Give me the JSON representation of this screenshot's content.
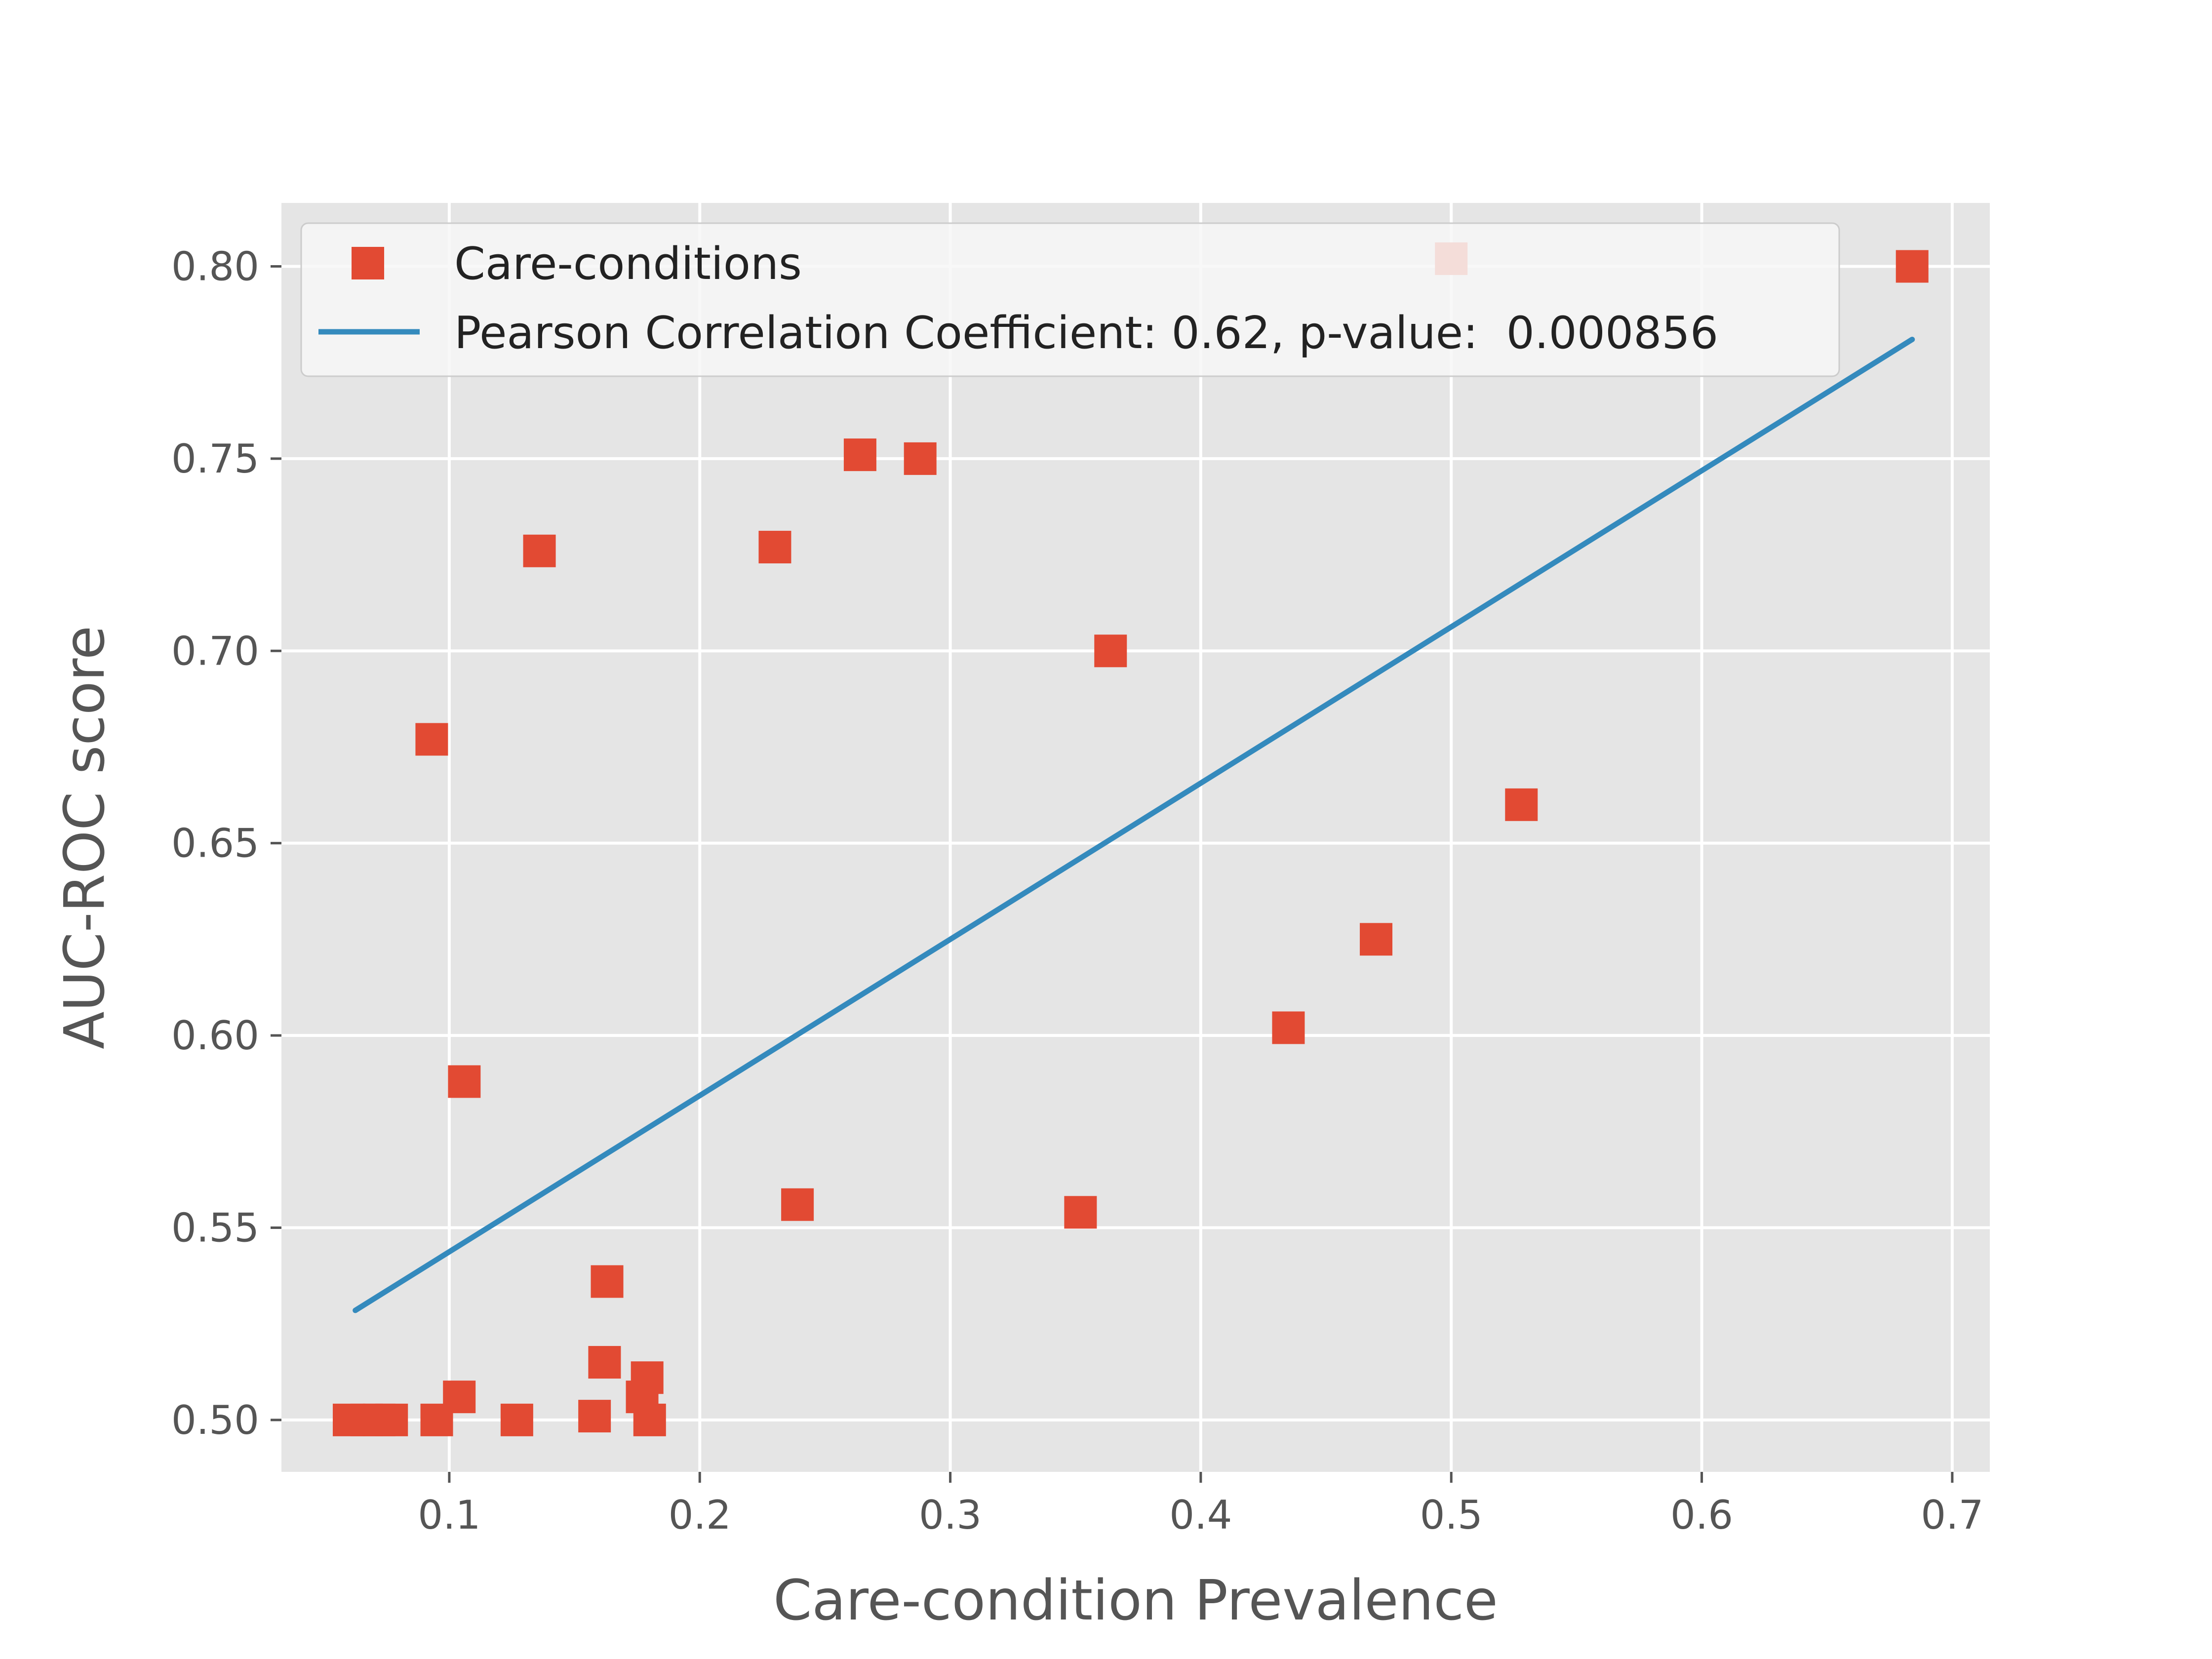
{
  "chart_data": {
    "type": "scatter",
    "xlabel": "Care-condition Prevalence",
    "ylabel": "AUC-ROC score",
    "xlim": [
      0.033,
      0.715
    ],
    "ylim": [
      0.4865,
      0.8165
    ],
    "xticks": [
      0.1,
      0.2,
      0.3,
      0.4,
      0.5,
      0.6,
      0.7
    ],
    "xtick_labels": [
      "0.1",
      "0.2",
      "0.3",
      "0.4",
      "0.5",
      "0.6",
      "0.7"
    ],
    "yticks": [
      0.5,
      0.55,
      0.6,
      0.65,
      0.7,
      0.75,
      0.8
    ],
    "ytick_labels": [
      "0.50",
      "0.55",
      "0.60",
      "0.65",
      "0.70",
      "0.75",
      "0.80"
    ],
    "grid": true,
    "legend_position": "top-left",
    "colors": {
      "background": "#e5e5e5",
      "grid": "#ffffff",
      "points": "#e24a33",
      "line": "#348abd"
    },
    "series": [
      {
        "name": "Care-conditions",
        "kind": "scatter",
        "marker": "square",
        "points": [
          {
            "x": 0.06,
            "y": 0.5
          },
          {
            "x": 0.067,
            "y": 0.5
          },
          {
            "x": 0.072,
            "y": 0.5
          },
          {
            "x": 0.077,
            "y": 0.5
          },
          {
            "x": 0.093,
            "y": 0.677
          },
          {
            "x": 0.095,
            "y": 0.5
          },
          {
            "x": 0.104,
            "y": 0.506
          },
          {
            "x": 0.106,
            "y": 0.588
          },
          {
            "x": 0.127,
            "y": 0.5
          },
          {
            "x": 0.136,
            "y": 0.726
          },
          {
            "x": 0.158,
            "y": 0.501
          },
          {
            "x": 0.162,
            "y": 0.515
          },
          {
            "x": 0.163,
            "y": 0.536
          },
          {
            "x": 0.177,
            "y": 0.506
          },
          {
            "x": 0.179,
            "y": 0.511
          },
          {
            "x": 0.18,
            "y": 0.5
          },
          {
            "x": 0.23,
            "y": 0.727
          },
          {
            "x": 0.239,
            "y": 0.556
          },
          {
            "x": 0.264,
            "y": 0.751
          },
          {
            "x": 0.288,
            "y": 0.75
          },
          {
            "x": 0.352,
            "y": 0.554
          },
          {
            "x": 0.364,
            "y": 0.7
          },
          {
            "x": 0.435,
            "y": 0.602
          },
          {
            "x": 0.47,
            "y": 0.625
          },
          {
            "x": 0.5,
            "y": 0.802
          },
          {
            "x": 0.528,
            "y": 0.66
          },
          {
            "x": 0.684,
            "y": 0.8
          }
        ]
      },
      {
        "name": "Pearson Correlation Coefficient: 0.62, p-value:  0.000856",
        "kind": "line",
        "points": [
          {
            "x": 0.0625,
            "y": 0.5285
          },
          {
            "x": 0.684,
            "y": 0.781
          }
        ]
      }
    ]
  }
}
